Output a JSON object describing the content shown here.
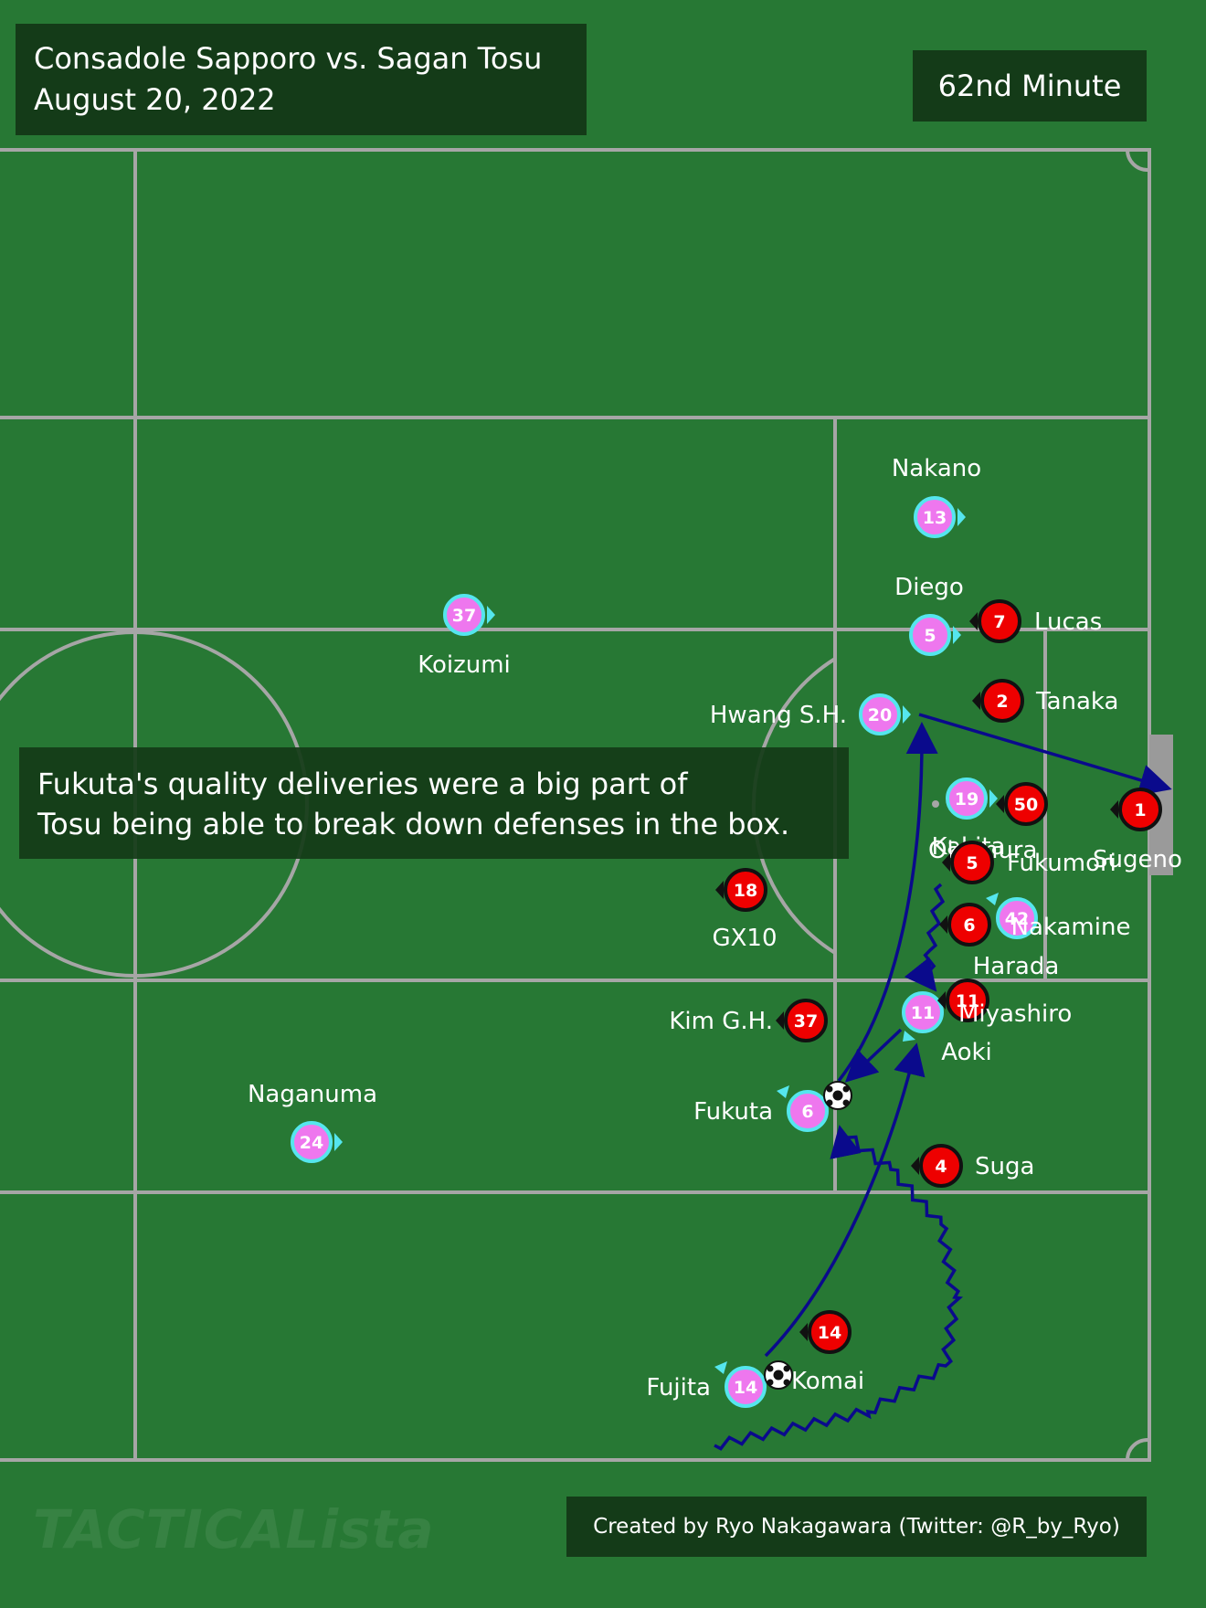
{
  "header": {
    "match": "Consadole Sapporo vs. Sagan Tosu",
    "date": "August 20,  2022",
    "minute": "62nd Minute"
  },
  "caption": {
    "line1": "Fukuta's quality deliveries were a big part of",
    "line2": "Tosu being able to break down defenses in the box."
  },
  "footer": {
    "credit": "Created by Ryo Nakagawara (Twitter: @R_by_Ryo)",
    "brand": "TACTICALista"
  },
  "colors": {
    "grass": "#277834",
    "line": "#a6a6a6",
    "tosu_fill": "#ee77ee",
    "tosu_ring": "#55e6ee",
    "sapporo_fill": "#ee0000",
    "arrow": "#0a0a8c",
    "panel": "#143b18"
  },
  "players": {
    "tosu": [
      {
        "number": "13",
        "name": "Nakano"
      },
      {
        "number": "37",
        "name": "Koizumi"
      },
      {
        "number": "5",
        "name": "Diego"
      },
      {
        "number": "20",
        "name": "Hwang S.H."
      },
      {
        "number": "19",
        "name": "Kakita"
      },
      {
        "number": "42",
        "name": "Nakamine"
      },
      {
        "number": "11",
        "name": "Aoki"
      },
      {
        "number": "6",
        "name": "Fukuta"
      },
      {
        "number": "24",
        "name": "Naganuma"
      },
      {
        "number": "14",
        "name": "Fujita"
      }
    ],
    "sapporo": [
      {
        "number": "7",
        "name": "Lucas"
      },
      {
        "number": "2",
        "name": "Tanaka"
      },
      {
        "number": "50",
        "name": "Okamura"
      },
      {
        "number": "1",
        "name": "Sugeno"
      },
      {
        "number": "5",
        "name": "Fukumori"
      },
      {
        "number": "6",
        "name": "Takamine"
      },
      {
        "number": "11",
        "name": "Miyashiro"
      },
      {
        "number": "18",
        "name": "GX10"
      },
      {
        "number": "37",
        "name": "Kim G.H."
      },
      {
        "number": "4",
        "name": "Suga"
      },
      {
        "number": "14",
        "name": "Komai"
      }
    ]
  },
  "extra_labels": {
    "harada": "Harada",
    "akamura": "kamura",
    "amine": "kamine"
  }
}
